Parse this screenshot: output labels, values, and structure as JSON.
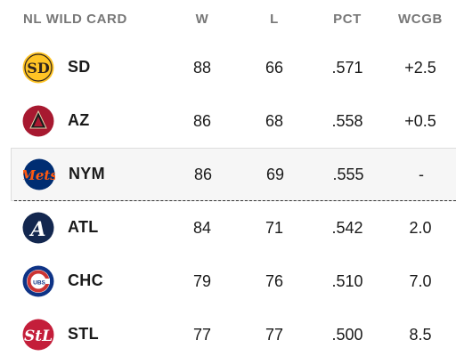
{
  "header": {
    "title": "NL WILD CARD",
    "col_w": "W",
    "col_l": "L",
    "col_pct": "PCT",
    "col_wcgb": "WCGB"
  },
  "rows": [
    {
      "team": "SD",
      "w": "88",
      "l": "66",
      "pct": ".571",
      "wcgb": "+2.5",
      "logo": "padres-logo-icon",
      "color": "#FFC425"
    },
    {
      "team": "AZ",
      "w": "86",
      "l": "68",
      "pct": ".558",
      "wcgb": "+0.5",
      "logo": "diamondbacks-logo-icon",
      "color": "#A71930"
    },
    {
      "team": "NYM",
      "w": "86",
      "l": "69",
      "pct": ".555",
      "wcgb": "-",
      "logo": "mets-logo-icon",
      "color": "#002D72"
    },
    {
      "team": "ATL",
      "w": "84",
      "l": "71",
      "pct": ".542",
      "wcgb": "2.0",
      "logo": "braves-logo-icon",
      "color": "#13274F"
    },
    {
      "team": "CHC",
      "w": "79",
      "l": "76",
      "pct": ".510",
      "wcgb": "7.0",
      "logo": "cubs-logo-icon",
      "color": "#0E3386"
    },
    {
      "team": "STL",
      "w": "77",
      "l": "77",
      "pct": ".500",
      "wcgb": "8.5",
      "logo": "cardinals-logo-icon",
      "color": "#C41E3A"
    }
  ],
  "colors": {
    "header_text": "#777777",
    "highlight_bg": "#f6f6f6",
    "cutline": "#333333"
  }
}
